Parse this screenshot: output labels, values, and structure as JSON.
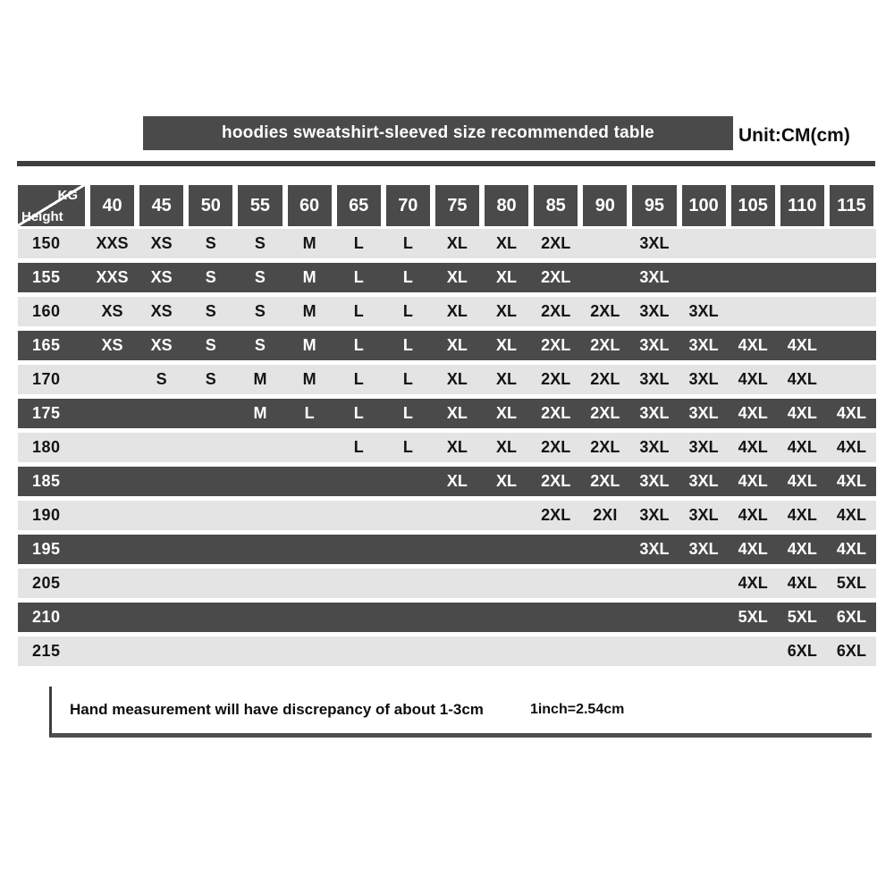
{
  "title_bar": {
    "title": "hoodies sweatshirt-sleeved size recommended table",
    "unit_label": "Unit:CM(cm)"
  },
  "colors": {
    "dark_gray": "#4a4a4a",
    "light_gray": "#e4e4e4",
    "text_on_dark": "#ffffff",
    "text_on_light": "#141414"
  },
  "chart_data": {
    "type": "table",
    "title": "hoodies sweatshirt-sleeved size recommended table",
    "unit": "Unit:CM(cm)",
    "corner": {
      "top_right": "KG",
      "bottom_left": "Height"
    },
    "columns_kg": [
      "40",
      "45",
      "50",
      "55",
      "60",
      "65",
      "70",
      "75",
      "80",
      "85",
      "90",
      "95",
      "100",
      "105",
      "110",
      "115"
    ],
    "rows": [
      {
        "height": "150",
        "sizes": [
          "XXS",
          "XS",
          "S",
          "S",
          "M",
          "L",
          "L",
          "XL",
          "XL",
          "2XL",
          "",
          "3XL",
          "",
          "",
          "",
          ""
        ]
      },
      {
        "height": "155",
        "sizes": [
          "XXS",
          "XS",
          "S",
          "S",
          "M",
          "L",
          "L",
          "XL",
          "XL",
          "2XL",
          "",
          "3XL",
          "",
          "",
          "",
          ""
        ]
      },
      {
        "height": "160",
        "sizes": [
          "XS",
          "XS",
          "S",
          "S",
          "M",
          "L",
          "L",
          "XL",
          "XL",
          "2XL",
          "2XL",
          "3XL",
          "3XL",
          "",
          "",
          ""
        ]
      },
      {
        "height": "165",
        "sizes": [
          "XS",
          "XS",
          "S",
          "S",
          "M",
          "L",
          "L",
          "XL",
          "XL",
          "2XL",
          "2XL",
          "3XL",
          "3XL",
          "4XL",
          "4XL",
          ""
        ]
      },
      {
        "height": "170",
        "sizes": [
          "",
          "S",
          "S",
          "M",
          "M",
          "L",
          "L",
          "XL",
          "XL",
          "2XL",
          "2XL",
          "3XL",
          "3XL",
          "4XL",
          "4XL",
          ""
        ]
      },
      {
        "height": "175",
        "sizes": [
          "",
          "",
          "",
          "M",
          "L",
          "L",
          "L",
          "XL",
          "XL",
          "2XL",
          "2XL",
          "3XL",
          "3XL",
          "4XL",
          "4XL",
          "4XL"
        ]
      },
      {
        "height": "180",
        "sizes": [
          "",
          "",
          "",
          "",
          "",
          "L",
          "L",
          "XL",
          "XL",
          "2XL",
          "2XL",
          "3XL",
          "3XL",
          "4XL",
          "4XL",
          "4XL"
        ]
      },
      {
        "height": "185",
        "sizes": [
          "",
          "",
          "",
          "",
          "",
          "",
          "",
          "XL",
          "XL",
          "2XL",
          "2XL",
          "3XL",
          "3XL",
          "4XL",
          "4XL",
          "4XL"
        ]
      },
      {
        "height": "190",
        "sizes": [
          "",
          "",
          "",
          "",
          "",
          "",
          "",
          "",
          "",
          "2XL",
          "2XI",
          "3XL",
          "3XL",
          "4XL",
          "4XL",
          "4XL"
        ]
      },
      {
        "height": "195",
        "sizes": [
          "",
          "",
          "",
          "",
          "",
          "",
          "",
          "",
          "",
          "",
          "",
          "3XL",
          "3XL",
          "4XL",
          "4XL",
          "4XL"
        ]
      },
      {
        "height": "205",
        "sizes": [
          "",
          "",
          "",
          "",
          "",
          "",
          "",
          "",
          "",
          "",
          "",
          "",
          "",
          "4XL",
          "4XL",
          "5XL"
        ]
      },
      {
        "height": "210",
        "sizes": [
          "",
          "",
          "",
          "",
          "",
          "",
          "",
          "",
          "",
          "",
          "",
          "",
          "",
          "5XL",
          "5XL",
          "6XL"
        ]
      },
      {
        "height": "215",
        "sizes": [
          "",
          "",
          "",
          "",
          "",
          "",
          "",
          "",
          "",
          "",
          "",
          "",
          "",
          "",
          "6XL",
          "6XL"
        ]
      }
    ]
  },
  "footer": {
    "note": "Hand measurement will have discrepancy of about  1-3cm",
    "conversion": "1inch=2.54cm"
  }
}
